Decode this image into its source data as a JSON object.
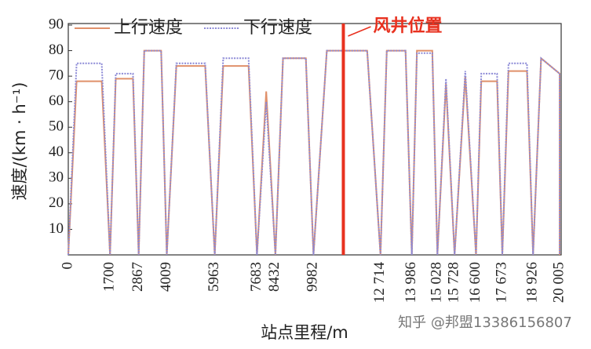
{
  "chart_data": {
    "type": "line",
    "y_label": "速度/(km · h⁻¹)",
    "x_label": "站点里程/m",
    "watermark": "知乎 @邦盟13386156807",
    "x": [
      0,
      340,
      1360,
      1700,
      1933,
      2634,
      2867,
      3095,
      3781,
      4009,
      4400,
      5572,
      5963,
      6307,
      7339,
      7683,
      8058,
      8432,
      8742,
      9672,
      9982,
      10528,
      12168,
      12714,
      12968,
      13732,
      13986,
      14194,
      14820,
      15028,
      15378,
      15728,
      16164,
      16600,
      16815,
      17458,
      17673,
      17924,
      18675,
      18926,
      19250,
      20005,
      20005
    ],
    "series": [
      {
        "name": "上行速度",
        "color": "#e0906a",
        "values": [
          0,
          68,
          68,
          0,
          69,
          69,
          0,
          80,
          80,
          0,
          74,
          74,
          0,
          74,
          74,
          0,
          64,
          0,
          77,
          77,
          0,
          80,
          80,
          0,
          80,
          80,
          0,
          80,
          80,
          0,
          67,
          0,
          70,
          0,
          68,
          68,
          0,
          72,
          72,
          0,
          77,
          71,
          0
        ]
      },
      {
        "name": "下行速度",
        "color": "#8c8ad6",
        "values": [
          0,
          75,
          75,
          0,
          71,
          71,
          0,
          80,
          80,
          0,
          75,
          75,
          0,
          77,
          77,
          0,
          60,
          0,
          77,
          77,
          0,
          80,
          80,
          0,
          80,
          80,
          0,
          79,
          79,
          0,
          69,
          0,
          72,
          0,
          71,
          71,
          0,
          75,
          75,
          0,
          77,
          71,
          0
        ]
      }
    ],
    "annotations": [
      {
        "text": "风井位置",
        "x": 11200,
        "color": "#e8311f"
      }
    ],
    "xlim": [
      0,
      20005
    ],
    "xticks": [
      0,
      1700,
      2867,
      4009,
      5963,
      7683,
      8432,
      9982,
      {
        "value": 12714,
        "label": "12 714"
      },
      {
        "value": 13986,
        "label": "13 986"
      },
      {
        "value": 15028,
        "label": "15 028"
      },
      {
        "value": 15728,
        "label": "15 728"
      },
      {
        "value": 16600,
        "label": "16 600"
      },
      {
        "value": 17673,
        "label": "17 673"
      },
      {
        "value": 18926,
        "label": "18 926"
      },
      {
        "value": 20005,
        "label": "20 005"
      }
    ],
    "ylim": [
      0,
      90
    ],
    "yticks": [
      10,
      20,
      30,
      40,
      50,
      60,
      70,
      80,
      90
    ],
    "grid": false
  }
}
